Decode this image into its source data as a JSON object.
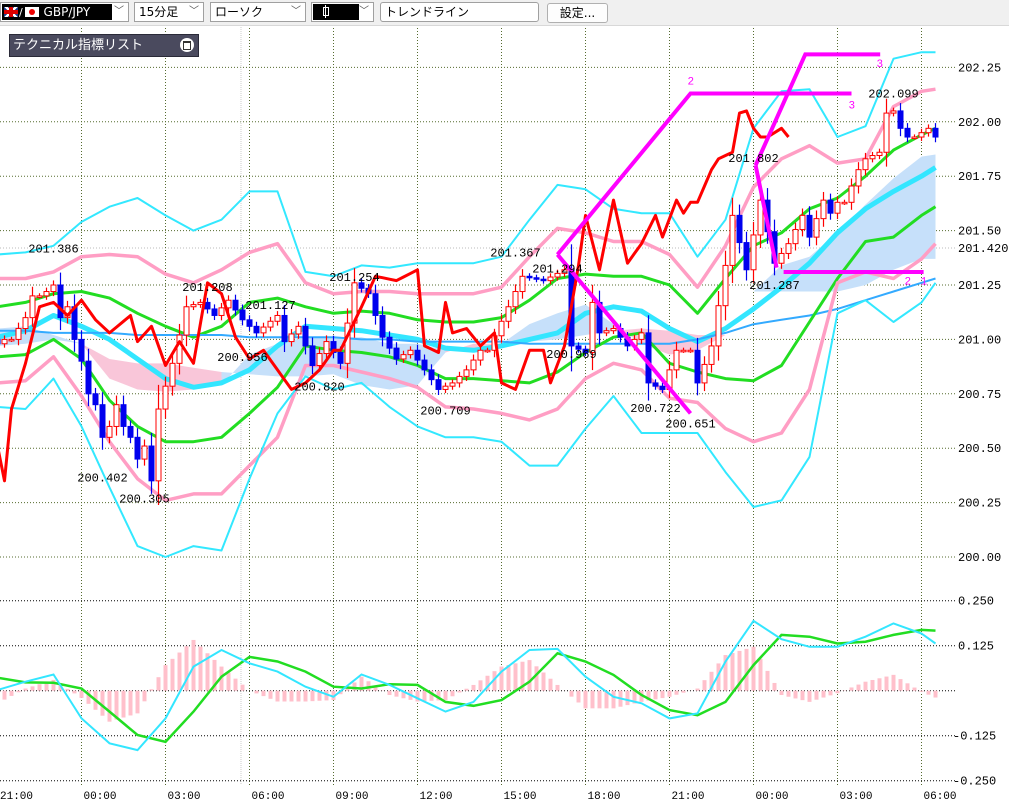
{
  "toolbar": {
    "symbol": "GBP/JPY",
    "timeframe": "15分足",
    "chart_type": "ローソク",
    "trendline": "トレンドライン",
    "settings": "設定..."
  },
  "indicator_panel": {
    "title": "テクニカル指標リスト"
  },
  "colors": {
    "up_candle": "#ff0000",
    "down_candle": "#0000ee",
    "bb_outer": "#33e8ff",
    "bb_mid": "#ff9ec4",
    "bb_inner": "#22dd22",
    "ma_short": "#33e6ff",
    "ma_long": "#33aaff",
    "chikou": "#ff0000",
    "zigzag": "#ff00ff",
    "cloud_up": "#c6e0fa",
    "cloud_down": "#f9c6d9",
    "histogram": "#ffc0cb",
    "macd": "#33e6ff",
    "signal": "#22dd22",
    "grid": "#556b2f"
  },
  "chart_data": {
    "type": "candlestick",
    "symbol": "GBP/JPY",
    "interval": "15min",
    "price_axis": {
      "ticks": [
        "202.25",
        "202.00",
        "201.75",
        "201.50",
        "201.25",
        "201.00",
        "200.75",
        "200.50",
        "200.25",
        "200.00"
      ],
      "current_price": "201.420"
    },
    "time_axis": {
      "ticks": [
        "21:00",
        "00:00",
        "03:00",
        "06:00",
        "09:00",
        "12:00",
        "15:00",
        "18:00",
        "21:00",
        "00:00",
        "03:00",
        "06:00"
      ]
    },
    "bar_range": [
      -12,
      122
    ],
    "close_keypoints": [
      [
        -12,
        200.98
      ],
      [
        -11,
        201.0
      ],
      [
        -10,
        201.0
      ],
      [
        -9,
        201.05
      ],
      [
        -8,
        201.1
      ],
      [
        -7,
        201.2
      ],
      [
        -6,
        201.2
      ],
      [
        -5,
        201.22
      ],
      [
        -4,
        201.25
      ],
      [
        -3,
        201.1
      ],
      [
        -2,
        201.15
      ],
      [
        -1,
        201.0
      ],
      [
        0,
        200.9
      ],
      [
        1,
        200.75
      ],
      [
        2,
        200.7
      ],
      [
        3,
        200.55
      ],
      [
        4,
        200.6
      ],
      [
        5,
        200.7
      ],
      [
        6,
        200.6
      ],
      [
        7,
        200.55
      ],
      [
        8,
        200.45
      ],
      [
        9,
        200.51
      ],
      [
        10,
        200.35
      ],
      [
        11,
        200.68
      ],
      [
        13,
        200.89
      ],
      [
        15,
        201.15
      ],
      [
        17,
        201.17
      ],
      [
        19,
        201.11
      ],
      [
        21,
        201.18
      ],
      [
        23,
        201.09
      ],
      [
        25,
        201.03
      ],
      [
        28,
        201.11
      ],
      [
        29,
        200.99
      ],
      [
        31,
        201.06
      ],
      [
        33,
        200.88
      ],
      [
        35,
        200.99
      ],
      [
        37,
        200.89
      ],
      [
        39,
        201.26
      ],
      [
        41,
        201.21
      ],
      [
        43,
        201.01
      ],
      [
        45,
        200.91
      ],
      [
        47,
        200.95
      ],
      [
        49,
        200.86
      ],
      [
        51,
        200.77
      ],
      [
        53,
        200.8
      ],
      [
        55,
        200.86
      ],
      [
        57,
        200.95
      ],
      [
        58,
        200.95
      ],
      [
        61,
        201.15
      ],
      [
        63,
        201.29
      ],
      [
        66,
        201.27
      ],
      [
        69,
        201.32
      ],
      [
        70,
        200.97
      ],
      [
        72,
        200.94
      ],
      [
        73,
        201.17
      ],
      [
        74,
        201.03
      ],
      [
        76,
        201.05
      ],
      [
        78,
        200.97
      ],
      [
        80,
        201.03
      ],
      [
        81,
        200.8
      ],
      [
        83,
        200.77
      ],
      [
        85,
        200.95
      ],
      [
        87,
        200.95
      ],
      [
        88,
        200.8
      ],
      [
        90,
        200.97
      ],
      [
        92,
        201.34
      ],
      [
        93,
        201.57
      ],
      [
        95,
        201.32
      ],
      [
        97,
        201.64
      ],
      [
        99,
        201.35
      ],
      [
        101,
        201.44
      ],
      [
        103,
        201.57
      ],
      [
        104,
        201.47
      ],
      [
        106,
        201.64
      ],
      [
        107,
        201.58
      ],
      [
        108,
        201.63
      ],
      [
        109,
        201.63
      ],
      [
        111,
        201.78
      ],
      [
        112,
        201.83
      ],
      [
        114,
        201.86
      ],
      [
        115,
        202.04
      ],
      [
        116,
        202.05
      ],
      [
        117,
        201.97
      ],
      [
        118,
        201.93
      ],
      [
        119,
        201.93
      ],
      [
        121,
        201.97
      ],
      [
        122,
        201.93
      ]
    ],
    "chikou_shift": 21,
    "sample_start_bar": -12,
    "sample_step_bars": 4,
    "series": [
      {
        "name": "bb_upper_outer",
        "color_key": "bb_outer",
        "values": [
          201.39,
          201.4,
          201.43,
          201.54,
          201.61,
          201.65,
          201.57,
          201.5,
          201.55,
          201.68,
          201.68,
          201.31,
          201.29,
          201.34,
          201.33,
          201.35,
          201.35,
          201.35,
          201.38,
          201.55,
          201.71,
          201.69,
          201.6,
          201.58,
          201.58,
          201.38,
          201.55,
          201.97,
          202.14,
          202.15,
          201.93,
          201.98,
          202.29,
          202.32,
          202.32
        ]
      },
      {
        "name": "bb_upper_mid",
        "color_key": "bb_mid",
        "values": [
          201.28,
          201.28,
          201.31,
          201.38,
          201.39,
          201.38,
          201.3,
          201.26,
          201.32,
          201.4,
          201.44,
          201.26,
          201.21,
          201.22,
          201.22,
          201.21,
          201.21,
          201.21,
          201.24,
          201.38,
          201.51,
          201.49,
          201.45,
          201.45,
          201.39,
          201.24,
          201.43,
          201.7,
          201.83,
          201.89,
          201.81,
          201.83,
          202.07,
          202.14,
          202.15
        ]
      },
      {
        "name": "bb_upper_inner",
        "color_key": "bb_inner",
        "values": [
          201.15,
          201.17,
          201.21,
          201.22,
          201.19,
          201.12,
          201.06,
          201.01,
          201.06,
          201.17,
          201.19,
          201.15,
          201.12,
          201.13,
          201.12,
          201.09,
          201.08,
          201.08,
          201.1,
          201.18,
          201.28,
          201.3,
          201.29,
          201.29,
          201.25,
          201.12,
          201.28,
          201.43,
          201.49,
          201.6,
          201.65,
          201.75,
          201.87,
          201.94,
          201.97
        ]
      },
      {
        "name": "ma_short",
        "color_key": "ma_short",
        "values": [
          201.01,
          201.04,
          201.11,
          201.06,
          201.0,
          200.91,
          200.82,
          200.78,
          200.8,
          200.86,
          200.97,
          201.06,
          201.05,
          201.04,
          201.02,
          201.0,
          200.96,
          200.95,
          200.97,
          201.0,
          201.03,
          201.12,
          201.15,
          201.13,
          201.05,
          200.99,
          201.05,
          201.14,
          201.24,
          201.35,
          201.49,
          201.6,
          201.68,
          201.75,
          201.79
        ]
      },
      {
        "name": "ma_long",
        "color_key": "ma_long",
        "values": [
          201.04,
          201.04,
          201.03,
          201.03,
          201.03,
          201.02,
          201.02,
          201.02,
          201.02,
          201.01,
          201.01,
          201.01,
          201.01,
          201.0,
          201.0,
          200.99,
          200.99,
          200.99,
          200.99,
          200.98,
          200.98,
          200.98,
          200.98,
          200.98,
          200.98,
          201.0,
          201.03,
          201.07,
          201.09,
          201.11,
          201.14,
          201.18,
          201.22,
          201.26,
          201.28
        ]
      },
      {
        "name": "bb_lower_inner",
        "color_key": "bb_inner",
        "values": [
          200.92,
          200.93,
          201.0,
          200.91,
          200.72,
          200.6,
          200.53,
          200.53,
          200.55,
          200.66,
          200.78,
          200.97,
          200.95,
          200.94,
          200.92,
          200.88,
          200.82,
          200.82,
          200.81,
          200.8,
          200.85,
          200.94,
          201.01,
          201.03,
          200.89,
          200.85,
          200.82,
          200.81,
          200.88,
          201.08,
          201.28,
          201.45,
          201.47,
          201.57,
          201.61
        ]
      },
      {
        "name": "bb_lower_mid",
        "color_key": "bb_mid",
        "values": [
          200.8,
          200.81,
          200.92,
          200.74,
          200.53,
          200.36,
          200.26,
          200.29,
          200.29,
          200.42,
          200.55,
          200.88,
          200.88,
          200.85,
          200.82,
          200.78,
          200.69,
          200.68,
          200.66,
          200.63,
          200.68,
          200.82,
          200.89,
          200.86,
          200.73,
          200.71,
          200.59,
          200.53,
          200.57,
          200.77,
          201.26,
          201.31,
          201.28,
          201.37,
          201.44
        ]
      },
      {
        "name": "bb_lower_outer",
        "color_key": "bb_outer",
        "values": [
          200.69,
          200.68,
          200.82,
          200.6,
          200.32,
          200.05,
          200.0,
          200.05,
          200.03,
          200.36,
          200.66,
          200.83,
          200.77,
          200.8,
          200.69,
          200.6,
          200.55,
          200.55,
          200.53,
          200.42,
          200.42,
          200.59,
          200.74,
          200.57,
          200.57,
          200.57,
          200.39,
          200.23,
          200.26,
          200.46,
          201.12,
          201.18,
          201.08,
          201.17,
          201.26
        ]
      }
    ],
    "cloud": {
      "span_a": [
        201.05,
        201.06,
        201.02,
        200.98,
        200.82,
        200.77,
        200.76,
        200.77,
        200.79,
        200.93,
        200.98,
        201.01,
        201.01,
        201.01,
        200.98,
        200.98,
        200.95,
        200.95,
        200.98,
        201.07,
        201.12,
        201.16,
        201.07,
        200.98,
        200.93,
        200.95,
        201.02,
        201.22,
        201.34,
        201.38,
        201.49,
        201.62,
        201.74,
        201.84,
        201.85
      ],
      "span_b": [
        200.97,
        200.98,
        201.0,
        200.98,
        200.91,
        200.89,
        200.89,
        200.87,
        200.85,
        200.84,
        200.83,
        200.83,
        200.84,
        200.79,
        200.77,
        200.79,
        200.94,
        200.98,
        200.98,
        200.99,
        201.0,
        201.02,
        201.04,
        201.05,
        201.04,
        201.02,
        201.02,
        201.22,
        201.22,
        201.22,
        201.22,
        201.25,
        201.32,
        201.37,
        201.37
      ]
    },
    "annotations": [
      {
        "text": "201.386",
        "bar": -4,
        "price": 201.386,
        "side": "above"
      },
      {
        "text": "200.402",
        "bar": 3,
        "price": 200.402,
        "side": "below"
      },
      {
        "text": "200.305",
        "bar": 9,
        "price": 200.305,
        "side": "below"
      },
      {
        "text": "201.208",
        "bar": 18,
        "price": 201.208,
        "side": "above"
      },
      {
        "text": "201.127",
        "bar": 27,
        "price": 201.127,
        "side": "above"
      },
      {
        "text": "200.956",
        "bar": 23,
        "price": 200.956,
        "side": "below"
      },
      {
        "text": "200.820",
        "bar": 34,
        "price": 200.82,
        "side": "below"
      },
      {
        "text": "201.254",
        "bar": 39,
        "price": 201.254,
        "side": "above"
      },
      {
        "text": "200.709",
        "bar": 52,
        "price": 200.709,
        "side": "below"
      },
      {
        "text": "201.367",
        "bar": 62,
        "price": 201.367,
        "side": "above"
      },
      {
        "text": "201.294",
        "bar": 68,
        "price": 201.294,
        "side": "above"
      },
      {
        "text": "200.969",
        "bar": 70,
        "price": 200.969,
        "side": "below"
      },
      {
        "text": "200.722",
        "bar": 82,
        "price": 200.722,
        "side": "below"
      },
      {
        "text": "200.651",
        "bar": 87,
        "price": 200.651,
        "side": "below"
      },
      {
        "text": "201.802",
        "bar": 96,
        "price": 201.802,
        "side": "above"
      },
      {
        "text": "201.287",
        "bar": 99,
        "price": 201.287,
        "side": "below"
      },
      {
        "text": "202.099",
        "bar": 116,
        "price": 202.099,
        "side": "above"
      }
    ],
    "zigzag": {
      "segments": [
        [
          [
            68,
            201.39
          ],
          [
            87,
            202.13
          ],
          [
            110,
            202.13
          ]
        ],
        [
          [
            68,
            201.39
          ],
          [
            87,
            200.66
          ]
        ],
        [
          [
            96.3,
            201.8
          ],
          [
            99.3,
            201.33
          ]
        ],
        [
          [
            96.3,
            201.8
          ],
          [
            103.4,
            202.31
          ],
          [
            114.1,
            202.31
          ]
        ],
        [
          [
            100.3,
            201.31
          ],
          [
            120.3,
            201.31
          ]
        ]
      ],
      "labels": [
        {
          "text": "2",
          "bar": 87,
          "price": 202.19
        },
        {
          "text": "3",
          "bar": 110,
          "price": 202.08
        },
        {
          "text": "3",
          "bar": 114,
          "price": 202.27
        },
        {
          "text": "2",
          "bar": 118,
          "price": 201.27
        },
        {
          "text": "1",
          "bar": 120.3,
          "price": 201.27
        }
      ]
    },
    "oscillator": {
      "axis_ticks": [
        "0.250",
        "0.125",
        "-0.125",
        "-0.250"
      ],
      "tick_values": [
        0.25,
        0.125,
        0,
        -0.125,
        -0.25
      ],
      "macd": [
        0.002,
        0.025,
        0.045,
        -0.077,
        -0.146,
        -0.165,
        -0.077,
        0.067,
        0.113,
        0.076,
        0.053,
        0.011,
        -0.017,
        0.045,
        0.016,
        -0.021,
        -0.058,
        -0.031,
        0.053,
        0.113,
        0.116,
        0.039,
        -0.017,
        -0.035,
        -0.077,
        -0.063,
        0.081,
        0.194,
        0.143,
        0.122,
        0.122,
        0.15,
        0.187,
        0.159,
        0.131
      ],
      "signal": [
        0.036,
        0.023,
        0.022,
        0.006,
        -0.058,
        -0.123,
        -0.142,
        -0.058,
        0.039,
        0.094,
        0.081,
        0.053,
        0.011,
        0.006,
        0.018,
        0.016,
        -0.031,
        -0.042,
        -0.026,
        0.025,
        0.104,
        0.081,
        0.044,
        -0.012,
        -0.054,
        -0.068,
        -0.031,
        0.071,
        0.155,
        0.15,
        0.131,
        0.136,
        0.155,
        0.169,
        0.167
      ],
      "histogram": [
        -0.035,
        0.006,
        0.03,
        -0.02,
        -0.086,
        -0.063,
        0.071,
        0.141,
        0.067,
        0.0,
        -0.03,
        -0.03,
        -0.026,
        0.039,
        -0.012,
        -0.03,
        -0.026,
        0.016,
        0.067,
        0.085,
        0.016,
        -0.049,
        -0.049,
        -0.031,
        -0.017,
        0.006,
        0.099,
        0.122,
        -0.012,
        -0.031,
        -0.007,
        0.025,
        0.044,
        -0.003,
        -0.035
      ]
    }
  }
}
